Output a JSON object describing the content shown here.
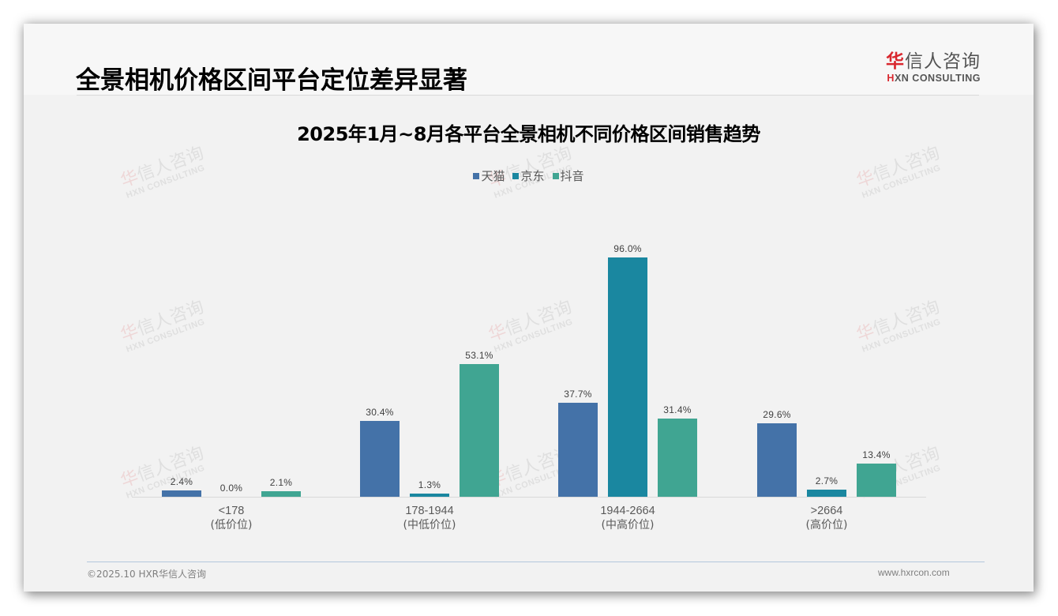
{
  "header": {
    "page_title": "全景相机价格区间平台定位差异显著",
    "logo_cn_first": "华",
    "logo_cn_rest": "信人咨询",
    "logo_en_first": "H",
    "logo_en_rest": "XN CONSULTING"
  },
  "watermark": {
    "cn_first": "华",
    "cn_rest": "信人咨询",
    "en": "HXN CONSULTING"
  },
  "footer": {
    "copyright": "©2025.10 HXR华信人咨询",
    "website": "www.hxrcon.com"
  },
  "colors": {
    "tmall": "#4472a8",
    "jd": "#1a87a0",
    "douyin": "#40a592",
    "brand_red": "#d9272e"
  },
  "chart_data": {
    "type": "bar",
    "title": "2025年1月~8月各平台全景相机不同价格区间销售趋势",
    "xlabel": "",
    "ylabel": "",
    "ylim": [
      0,
      100
    ],
    "grid": false,
    "legend_position": "top",
    "categories": [
      "<178",
      "178-1944",
      "1944-2664",
      ">2664"
    ],
    "category_sublabels": [
      "(低价位)",
      "(中低价位)",
      "(中高价位)",
      "(高价位)"
    ],
    "series": [
      {
        "name": "天猫",
        "values": [
          2.4,
          30.4,
          37.7,
          29.6
        ],
        "labels": [
          "2.4%",
          "30.4%",
          "37.7%",
          "29.6%"
        ]
      },
      {
        "name": "京东",
        "values": [
          0.0,
          1.3,
          96.0,
          2.7
        ],
        "labels": [
          "0.0%",
          "1.3%",
          "96.0%",
          "2.7%"
        ]
      },
      {
        "name": "抖音",
        "values": [
          2.1,
          53.1,
          31.4,
          13.4
        ],
        "labels": [
          "2.1%",
          "53.1%",
          "31.4%",
          "13.4%"
        ]
      }
    ]
  }
}
